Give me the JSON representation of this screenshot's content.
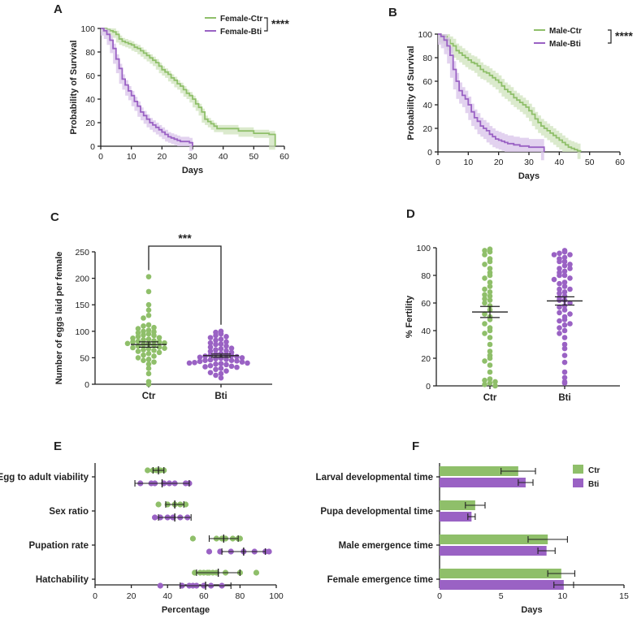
{
  "colors": {
    "ctr": "#8fbf6a",
    "bti": "#9a62c4",
    "ctr_band": "#cfe3bc",
    "bti_band": "#d8c3ea",
    "axis": "#222222"
  },
  "chart_data": [
    {
      "panel": "A",
      "type": "line",
      "subtype": "survival-step",
      "xlabel": "Days",
      "ylabel": "Probability of Survival",
      "xlim": [
        0,
        60
      ],
      "ylim": [
        0,
        100
      ],
      "xticks": [
        "0",
        "10",
        "20",
        "30",
        "40",
        "50",
        "60"
      ],
      "yticks": [
        "0",
        "20",
        "40",
        "60",
        "80",
        "100"
      ],
      "significance": "****",
      "series": [
        {
          "name": "Female-Ctr",
          "color_key": "ctr",
          "band": 3,
          "x": [
            0,
            1,
            2,
            3,
            4,
            5,
            6,
            7,
            8,
            9,
            10,
            11,
            12,
            13,
            14,
            15,
            16,
            17,
            18,
            19,
            20,
            21,
            22,
            23,
            24,
            25,
            26,
            27,
            28,
            29,
            30,
            31,
            32,
            33,
            34,
            35,
            36,
            37,
            38,
            40,
            45,
            50,
            55,
            57
          ],
          "y": [
            100,
            100,
            99,
            98,
            97,
            95,
            91,
            89,
            88,
            87,
            86,
            84,
            83,
            81,
            79,
            77,
            75,
            73,
            71,
            68,
            65,
            63,
            61,
            58,
            56,
            53,
            51,
            48,
            45,
            43,
            40,
            36,
            33,
            29,
            23,
            21,
            19,
            17,
            15,
            15,
            13,
            11,
            10,
            0
          ]
        },
        {
          "name": "Female-Bti",
          "color_key": "bti",
          "band": 4,
          "x": [
            0,
            1,
            2,
            3,
            4,
            5,
            6,
            7,
            8,
            9,
            10,
            11,
            12,
            13,
            14,
            15,
            16,
            17,
            18,
            19,
            20,
            21,
            22,
            23,
            24,
            25,
            26,
            27,
            28,
            29,
            30
          ],
          "y": [
            100,
            98,
            95,
            90,
            83,
            74,
            66,
            57,
            52,
            47,
            43,
            38,
            34,
            29,
            26,
            23,
            20,
            18,
            16,
            14,
            12,
            10,
            8,
            7,
            6,
            5,
            4,
            4,
            4,
            3,
            0
          ]
        }
      ]
    },
    {
      "panel": "B",
      "type": "line",
      "subtype": "survival-step",
      "xlabel": "Days",
      "ylabel": "Probability of Survival",
      "xlim": [
        0,
        60
      ],
      "ylim": [
        0,
        100
      ],
      "xticks": [
        "0",
        "10",
        "20",
        "30",
        "40",
        "50",
        "60"
      ],
      "yticks": [
        "0",
        "20",
        "40",
        "60",
        "80",
        "100"
      ],
      "significance": "****",
      "series": [
        {
          "name": "Male-Ctr",
          "color_key": "ctr",
          "band": 6,
          "x": [
            0,
            1,
            2,
            3,
            4,
            5,
            6,
            7,
            8,
            9,
            10,
            11,
            12,
            13,
            14,
            15,
            16,
            17,
            18,
            19,
            20,
            21,
            22,
            23,
            24,
            25,
            26,
            27,
            28,
            29,
            30,
            31,
            32,
            33,
            34,
            35,
            36,
            37,
            38,
            39,
            40,
            41,
            42,
            43,
            44,
            45,
            46,
            47
          ],
          "y": [
            100,
            99,
            98,
            95,
            92,
            90,
            86,
            84,
            82,
            80,
            78,
            76,
            75,
            73,
            70,
            68,
            67,
            65,
            63,
            61,
            59,
            56,
            53,
            51,
            49,
            46,
            44,
            42,
            40,
            38,
            35,
            32,
            28,
            25,
            22,
            20,
            18,
            16,
            14,
            12,
            10,
            8,
            6,
            4,
            3,
            2,
            1,
            0
          ]
        },
        {
          "name": "Male-Bti",
          "color_key": "bti",
          "band": 7,
          "x": [
            0,
            1,
            2,
            3,
            4,
            5,
            6,
            7,
            8,
            9,
            10,
            11,
            12,
            13,
            14,
            15,
            16,
            17,
            18,
            19,
            20,
            21,
            22,
            23,
            24,
            25,
            26,
            27,
            28,
            29,
            30,
            31,
            32,
            33,
            34,
            35
          ],
          "y": [
            100,
            98,
            95,
            90,
            82,
            70,
            60,
            52,
            48,
            45,
            40,
            34,
            29,
            26,
            22,
            20,
            18,
            15,
            13,
            11,
            10,
            9,
            8,
            7,
            7,
            6,
            6,
            5,
            5,
            5,
            4,
            4,
            4,
            4,
            4,
            0
          ]
        }
      ]
    },
    {
      "panel": "C",
      "type": "scatter",
      "subtype": "dot-plot",
      "ylabel": "Number of eggs laid per female",
      "ylim": [
        0,
        250
      ],
      "yticks": [
        "0",
        "50",
        "100",
        "150",
        "200",
        "250"
      ],
      "categories": [
        "Ctr",
        "Bti"
      ],
      "significance": "***",
      "series": [
        {
          "name": "Ctr",
          "color_key": "ctr",
          "mean": 75,
          "sem": 5,
          "values": [
            203,
            175,
            150,
            140,
            130,
            125,
            112,
            110,
            107,
            105,
            102,
            100,
            99,
            97,
            95,
            93,
            92,
            90,
            88,
            87,
            85,
            84,
            82,
            81,
            80,
            80,
            78,
            77,
            76,
            75,
            74,
            72,
            70,
            69,
            68,
            67,
            65,
            64,
            62,
            60,
            58,
            55,
            53,
            50,
            47,
            45,
            42,
            38,
            30,
            20,
            5,
            0
          ]
        },
        {
          "name": "Bti",
          "color_key": "bti",
          "mean": 54,
          "sem": 3,
          "values": [
            100,
            98,
            95,
            92,
            90,
            88,
            85,
            83,
            80,
            78,
            76,
            75,
            72,
            70,
            68,
            67,
            65,
            63,
            62,
            60,
            58,
            57,
            56,
            55,
            54,
            53,
            52,
            51,
            50,
            49,
            48,
            47,
            46,
            45,
            45,
            44,
            43,
            42,
            41,
            40,
            40,
            39,
            38,
            37,
            35,
            34,
            33,
            32,
            30,
            28,
            25,
            22,
            20,
            17,
            12
          ]
        }
      ]
    },
    {
      "panel": "D",
      "type": "scatter",
      "subtype": "dot-plot",
      "ylabel": "% Fertility",
      "ylim": [
        0,
        100
      ],
      "yticks": [
        "0",
        "20",
        "40",
        "60",
        "80",
        "100"
      ],
      "categories": [
        "Ctr",
        "Bti"
      ],
      "series": [
        {
          "name": "Ctr",
          "color_key": "ctr",
          "mean": 53.5,
          "sem": 4,
          "values": [
            99,
            98,
            97,
            95,
            92,
            90,
            88,
            85,
            82,
            80,
            78,
            75,
            72,
            70,
            68,
            66,
            65,
            63,
            62,
            60,
            58,
            55,
            52,
            50,
            48,
            45,
            42,
            40,
            38,
            35,
            30,
            25,
            22,
            20,
            18,
            15,
            10,
            5,
            4,
            3,
            2,
            1,
            0
          ]
        },
        {
          "name": "Bti",
          "color_key": "bti",
          "mean": 61.5,
          "sem": 3,
          "values": [
            98,
            97,
            96,
            95,
            95,
            93,
            92,
            90,
            90,
            88,
            87,
            85,
            85,
            83,
            82,
            80,
            80,
            78,
            77,
            75,
            74,
            72,
            70,
            70,
            68,
            67,
            65,
            64,
            62,
            62,
            60,
            58,
            57,
            55,
            53,
            52,
            50,
            48,
            47,
            45,
            44,
            42,
            40,
            38,
            35,
            30,
            27,
            22,
            17,
            10,
            6,
            3,
            2
          ]
        }
      ]
    },
    {
      "panel": "E",
      "type": "scatter",
      "subtype": "horizontal-dot-plot",
      "xlabel": "Percentage",
      "xlim": [
        0,
        100
      ],
      "xticks": [
        "0",
        "20",
        "40",
        "60",
        "80",
        "100"
      ],
      "categories": [
        "Egg to adult viability",
        "Sex ratio",
        "Pupation rate",
        "Hatchability"
      ],
      "series": [
        {
          "name": "Ctr",
          "color_key": "ctr",
          "means": [
            35,
            44,
            71,
            68
          ],
          "sds": [
            3,
            5,
            8,
            12
          ],
          "points": [
            [
              29,
              32,
              34,
              36,
              38
            ],
            [
              35,
              40,
              44,
              47,
              50
            ],
            [
              54,
              67,
              70,
              72,
              76,
              79,
              80
            ],
            [
              55,
              58,
              60,
              62,
              63,
              65,
              67,
              72,
              80,
              89
            ]
          ]
        },
        {
          "name": "Bti",
          "color_key": "bti",
          "means": [
            37,
            44,
            82,
            61
          ],
          "sds": [
            15,
            9,
            12,
            14
          ],
          "points": [
            [
              25,
              31,
              33,
              38,
              41,
              44,
              50,
              52
            ],
            [
              33,
              36,
              40,
              43,
              47,
              51
            ],
            [
              63,
              69,
              75,
              82,
              88,
              94,
              96
            ],
            [
              36,
              48,
              52,
              54,
              56,
              60,
              64,
              70
            ]
          ]
        }
      ]
    },
    {
      "panel": "F",
      "type": "bar",
      "subtype": "horizontal-grouped",
      "xlabel": "Days",
      "xlim": [
        0,
        15
      ],
      "xticks": [
        "0",
        "5",
        "10",
        "15"
      ],
      "categories": [
        "Larval developmental time",
        "Pupa developmental time",
        "Male emergence time",
        "Female emergence time"
      ],
      "series": [
        {
          "name": "Ctr",
          "color_key": "ctr",
          "values": [
            6.4,
            2.9,
            8.8,
            9.9
          ],
          "errors": [
            1.4,
            0.8,
            1.6,
            1.1
          ]
        },
        {
          "name": "Bti",
          "color_key": "bti",
          "values": [
            7.0,
            2.6,
            8.7,
            10.1
          ],
          "errors": [
            0.6,
            0.3,
            0.7,
            0.8
          ]
        }
      ]
    }
  ]
}
